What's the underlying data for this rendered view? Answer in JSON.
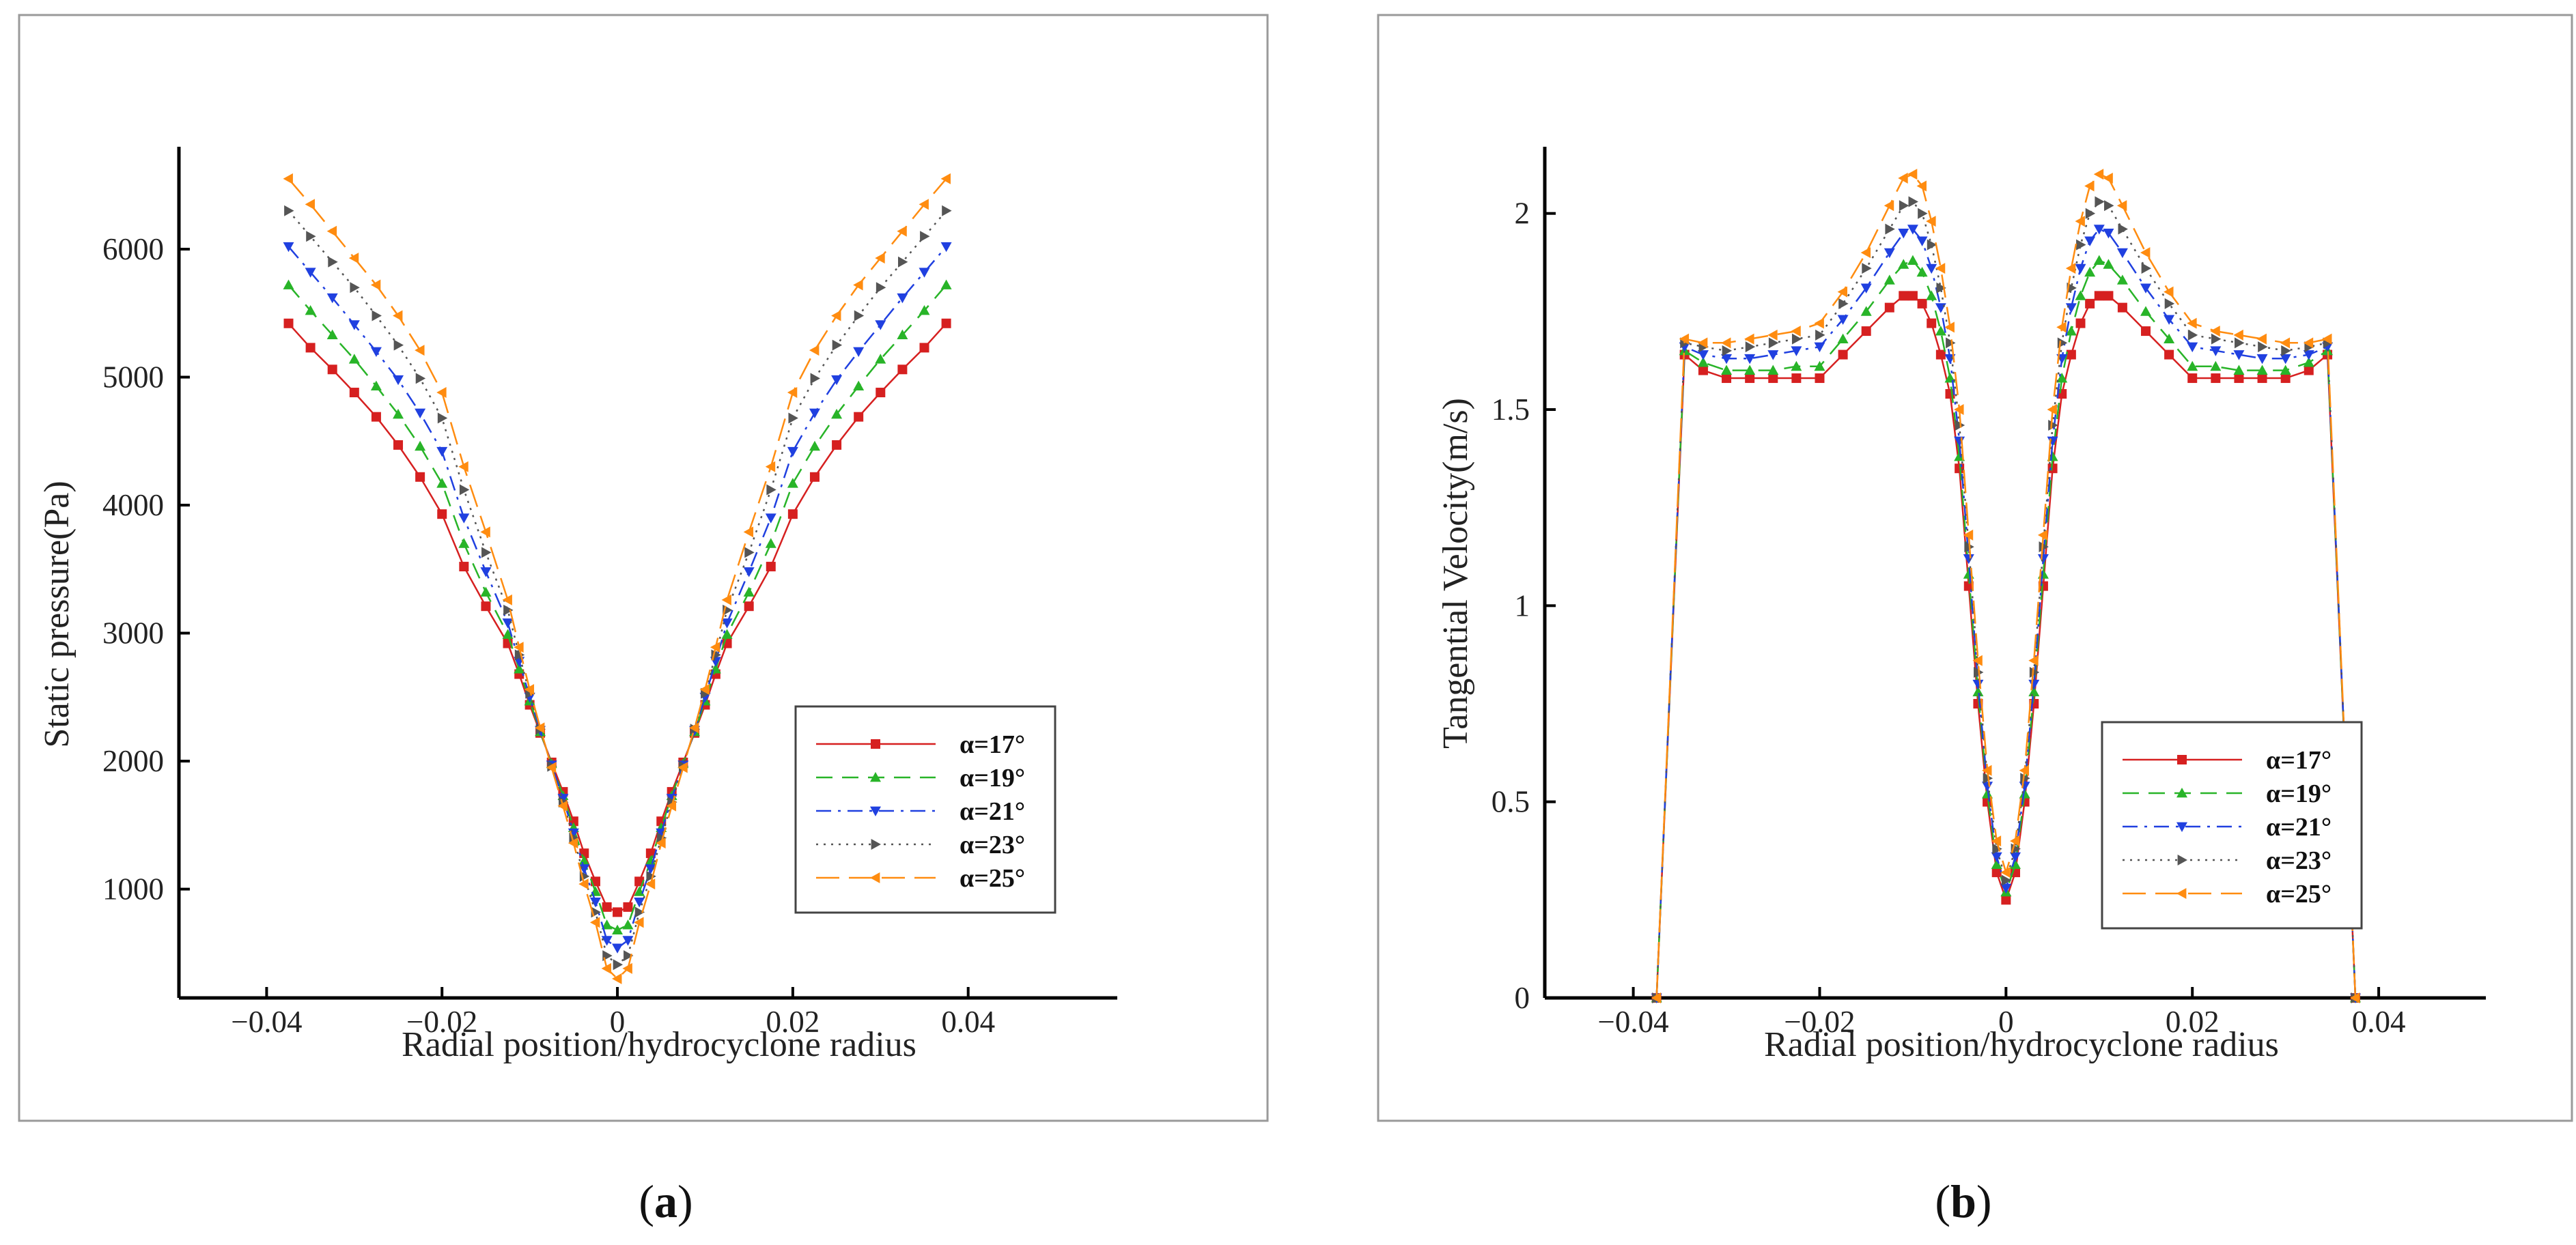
{
  "figure": {
    "panels": [
      {
        "caption_open": "(",
        "caption_letter": "a",
        "caption_close": ")"
      },
      {
        "caption_open": "(",
        "caption_letter": "b",
        "caption_close": ")"
      }
    ]
  },
  "chart_data": [
    {
      "type": "line",
      "panel": "a",
      "xlabel": "Radial position/hydrocyclone radius",
      "ylabel": "Static  pressure(Pa)",
      "xlim": [
        -0.05,
        0.057
      ],
      "ylim": [
        150,
        6800
      ],
      "xticks": [
        -0.04,
        -0.02,
        0,
        0.02,
        0.04
      ],
      "xtick_labels": [
        "−0.04",
        "−0.02",
        "0",
        "0.02",
        "0.04"
      ],
      "yticks": [
        1000,
        2000,
        3000,
        4000,
        5000,
        6000
      ],
      "ytick_labels": [
        "1000",
        "2000",
        "3000",
        "4000",
        "5000",
        "6000"
      ],
      "legend": {
        "position": "lower-right"
      },
      "series": [
        {
          "name": "α=17°",
          "color": "#d62020",
          "marker": "square",
          "dash": "solid",
          "x": [
            0.0375,
            0.035,
            0.0325,
            0.03,
            0.0275,
            0.025,
            0.0225,
            0.02,
            0.0175,
            0.015,
            0.0125,
            0.0112,
            0.01,
            0.0088,
            0.0075,
            0.0062,
            0.005,
            0.0038,
            0.0025,
            0.0012,
            0.0
          ],
          "values": [
            5420,
            5230,
            5060,
            4880,
            4690,
            4470,
            4220,
            3930,
            3520,
            3210,
            2920,
            2680,
            2440,
            2220,
            1990,
            1760,
            1530,
            1280,
            1060,
            860,
            820
          ]
        },
        {
          "name": "α=19°",
          "color": "#28b428",
          "marker": "triangle-up",
          "dash": "dash",
          "x": [
            0.0375,
            0.035,
            0.0325,
            0.03,
            0.0275,
            0.025,
            0.0225,
            0.02,
            0.0175,
            0.015,
            0.0125,
            0.0112,
            0.01,
            0.0088,
            0.0075,
            0.0062,
            0.005,
            0.0038,
            0.0025,
            0.0012,
            0.0
          ],
          "values": [
            5720,
            5520,
            5330,
            5140,
            4930,
            4710,
            4460,
            4170,
            3700,
            3320,
            2990,
            2720,
            2470,
            2230,
            1980,
            1730,
            1480,
            1220,
            980,
            720,
            680
          ]
        },
        {
          "name": "α=21°",
          "color": "#2040e0",
          "marker": "triangle-down",
          "dash": "dashdot",
          "x": [
            0.0375,
            0.035,
            0.0325,
            0.03,
            0.0275,
            0.025,
            0.0225,
            0.02,
            0.0175,
            0.015,
            0.0125,
            0.0112,
            0.01,
            0.0088,
            0.0075,
            0.0062,
            0.005,
            0.0038,
            0.0025,
            0.0012,
            0.0
          ],
          "values": [
            6020,
            5820,
            5620,
            5410,
            5200,
            4980,
            4720,
            4420,
            3900,
            3480,
            3080,
            2780,
            2500,
            2240,
            1970,
            1710,
            1440,
            1160,
            900,
            600,
            540
          ]
        },
        {
          "name": "α=23°",
          "color": "#555555",
          "marker": "triangle-right",
          "dash": "dot",
          "x": [
            0.0375,
            0.035,
            0.0325,
            0.03,
            0.0275,
            0.025,
            0.0225,
            0.02,
            0.0175,
            0.015,
            0.0125,
            0.0112,
            0.01,
            0.0088,
            0.0075,
            0.0062,
            0.005,
            0.0038,
            0.0025,
            0.0012,
            0.0
          ],
          "values": [
            6300,
            6100,
            5900,
            5700,
            5480,
            5250,
            4990,
            4680,
            4120,
            3630,
            3180,
            2830,
            2530,
            2250,
            1960,
            1680,
            1400,
            1100,
            820,
            480,
            410
          ]
        },
        {
          "name": "α=25°",
          "color": "#ff8c10",
          "marker": "triangle-left",
          "dash": "longdash",
          "x": [
            0.0375,
            0.035,
            0.0325,
            0.03,
            0.0275,
            0.025,
            0.0225,
            0.02,
            0.0175,
            0.015,
            0.0125,
            0.0112,
            0.01,
            0.0088,
            0.0075,
            0.0062,
            0.005,
            0.0038,
            0.0025,
            0.0012,
            0.0
          ],
          "values": [
            6550,
            6350,
            6140,
            5930,
            5720,
            5480,
            5210,
            4880,
            4300,
            3790,
            3260,
            2890,
            2560,
            2260,
            1950,
            1650,
            1360,
            1040,
            740,
            380,
            300
          ]
        }
      ]
    },
    {
      "type": "line",
      "panel": "b",
      "xlabel": "Radial position/hydrocyclone radius",
      "ylabel": "Tangential Velocity(m/s)",
      "xlim": [
        -0.0495,
        0.0515
      ],
      "ylim": [
        0,
        2.17
      ],
      "xticks": [
        -0.04,
        -0.02,
        0,
        0.02,
        0.04
      ],
      "xtick_labels": [
        "−0.04",
        "−0.02",
        "0",
        "0.02",
        "0.04"
      ],
      "yticks": [
        0,
        0.5,
        1,
        1.5,
        2
      ],
      "ytick_labels": [
        "0",
        "0.5",
        "1",
        "1.5",
        "2"
      ],
      "legend": {
        "position": "lower-right"
      },
      "series": [
        {
          "name": "α=17°",
          "color": "#d62020",
          "marker": "square",
          "dash": "solid",
          "x": [
            0.0375,
            0.0345,
            0.0325,
            0.03,
            0.0275,
            0.025,
            0.0225,
            0.02,
            0.0175,
            0.015,
            0.0125,
            0.011,
            0.01,
            0.009,
            0.008,
            0.007,
            0.006,
            0.005,
            0.004,
            0.003,
            0.002,
            0.001,
            0.0
          ],
          "values": [
            0,
            1.64,
            1.6,
            1.58,
            1.58,
            1.58,
            1.58,
            1.58,
            1.64,
            1.7,
            1.76,
            1.79,
            1.79,
            1.77,
            1.72,
            1.64,
            1.54,
            1.35,
            1.05,
            0.75,
            0.5,
            0.32,
            0.25
          ]
        },
        {
          "name": "α=19°",
          "color": "#28b428",
          "marker": "triangle-up",
          "dash": "dash",
          "x": [
            0.0375,
            0.0345,
            0.0325,
            0.03,
            0.0275,
            0.025,
            0.0225,
            0.02,
            0.0175,
            0.015,
            0.0125,
            0.011,
            0.01,
            0.009,
            0.008,
            0.007,
            0.006,
            0.005,
            0.004,
            0.003,
            0.002,
            0.001,
            0.0
          ],
          "values": [
            0,
            1.65,
            1.62,
            1.6,
            1.6,
            1.6,
            1.61,
            1.61,
            1.68,
            1.75,
            1.83,
            1.87,
            1.88,
            1.85,
            1.79,
            1.7,
            1.58,
            1.38,
            1.08,
            0.78,
            0.52,
            0.34,
            0.27
          ]
        },
        {
          "name": "α=21°",
          "color": "#2040e0",
          "marker": "triangle-down",
          "dash": "dashdot",
          "x": [
            0.0375,
            0.0345,
            0.0325,
            0.03,
            0.0275,
            0.025,
            0.0225,
            0.02,
            0.0175,
            0.015,
            0.0125,
            0.011,
            0.01,
            0.009,
            0.008,
            0.007,
            0.006,
            0.005,
            0.004,
            0.003,
            0.002,
            0.001,
            0.0
          ],
          "values": [
            0,
            1.66,
            1.64,
            1.63,
            1.63,
            1.64,
            1.65,
            1.66,
            1.73,
            1.81,
            1.9,
            1.95,
            1.96,
            1.93,
            1.86,
            1.76,
            1.63,
            1.42,
            1.12,
            0.8,
            0.54,
            0.36,
            0.28
          ]
        },
        {
          "name": "α=23°",
          "color": "#555555",
          "marker": "triangle-right",
          "dash": "dot",
          "x": [
            0.0375,
            0.0345,
            0.0325,
            0.03,
            0.0275,
            0.025,
            0.0225,
            0.02,
            0.0175,
            0.015,
            0.0125,
            0.011,
            0.01,
            0.009,
            0.008,
            0.007,
            0.006,
            0.005,
            0.004,
            0.003,
            0.002,
            0.001,
            0.0
          ],
          "values": [
            0,
            1.67,
            1.66,
            1.65,
            1.66,
            1.67,
            1.68,
            1.69,
            1.77,
            1.86,
            1.96,
            2.02,
            2.03,
            2.0,
            1.92,
            1.81,
            1.67,
            1.46,
            1.15,
            0.83,
            0.56,
            0.38,
            0.3
          ]
        },
        {
          "name": "α=25°",
          "color": "#ff8c10",
          "marker": "triangle-left",
          "dash": "longdash",
          "x": [
            0.0375,
            0.0345,
            0.0325,
            0.03,
            0.0275,
            0.025,
            0.0225,
            0.02,
            0.0175,
            0.015,
            0.0125,
            0.011,
            0.01,
            0.009,
            0.008,
            0.007,
            0.006,
            0.005,
            0.004,
            0.003,
            0.002,
            0.001,
            0.0
          ],
          "values": [
            0,
            1.68,
            1.67,
            1.67,
            1.68,
            1.69,
            1.7,
            1.72,
            1.8,
            1.9,
            2.02,
            2.09,
            2.1,
            2.07,
            1.98,
            1.86,
            1.71,
            1.5,
            1.18,
            0.86,
            0.58,
            0.4,
            0.32
          ]
        }
      ]
    }
  ]
}
